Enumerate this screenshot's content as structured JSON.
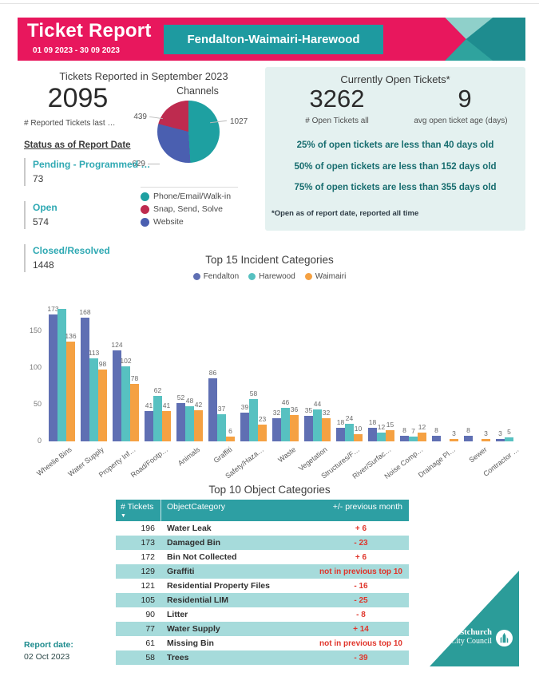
{
  "header": {
    "title": "Ticket Report",
    "date_range": "01 09 2023 - 30 09 2023",
    "area": "Fendalton-Waimairi-Harewood",
    "colors": {
      "band": "#E8175D",
      "area_box": "#1E9AA0",
      "chevron_light": "#8FD0CA",
      "chevron_mid": "#2FA39E",
      "chevron_dark": "#1E8C8F"
    }
  },
  "reported": {
    "title": "Tickets Reported in September 2023",
    "count": "2095",
    "count_caption": "# Reported Tickets last …",
    "status_heading": "Status as of Report Date",
    "statuses": [
      {
        "label": "Pending - Programmed …",
        "value": "73"
      },
      {
        "label": "Open",
        "value": "574"
      },
      {
        "label": "Closed/Resolved",
        "value": "1448"
      }
    ]
  },
  "channels": {
    "title": "Channels",
    "slices": [
      {
        "label": "Phone/Email/Walk-in",
        "value": 1027,
        "color": "#1EA0A1"
      },
      {
        "label": "Snap, Send, Solve",
        "value": 439,
        "color": "#BE2B4F"
      },
      {
        "label": "Website",
        "value": 629,
        "color": "#4A5FB0"
      }
    ]
  },
  "open_tickets": {
    "title": "Currently Open Tickets*",
    "count": "3262",
    "count_caption": "# Open Tickets all",
    "avg_age": "9",
    "avg_age_caption": "avg open ticket age (days)",
    "percentiles": [
      "25% of open tickets are less than 40 days old",
      "50% of open tickets are less than 152 days old",
      "75% of open tickets are less than 355 days old"
    ],
    "footnote": "*Open as of report date, reported all time",
    "panel_bg": "#E4F1F0"
  },
  "chart_data": [
    {
      "type": "pie",
      "title": "Channels",
      "labels": [
        "Phone/Email/Walk-in",
        "Snap, Send, Solve",
        "Website"
      ],
      "values": [
        1027,
        439,
        629
      ],
      "colors": [
        "#1EA0A1",
        "#BE2B4F",
        "#4A5FB0"
      ],
      "draw_order": [
        0,
        2,
        1
      ],
      "legend_position": "bottom",
      "callouts": [
        "1027",
        "439",
        "629"
      ]
    },
    {
      "type": "bar",
      "title": "Top 15 Incident Categories",
      "categories": [
        "Wheelie Bins",
        "Water Supply",
        "Property Inf…",
        "Road/Footp…",
        "Animals",
        "Graffiti",
        "Safety/Haza…",
        "Waste",
        "Vegetation",
        "Structures/F…",
        "River/Surfac…",
        "Noise Comp…",
        "Drainage Pl…",
        "Sewer",
        "Contractor …"
      ],
      "series": [
        {
          "name": "Fendalton",
          "color": "#5F6FB3",
          "values": [
            173,
            168,
            124,
            41,
            52,
            86,
            39,
            32,
            35,
            18,
            18,
            8,
            8,
            8,
            3
          ]
        },
        {
          "name": "Harewood",
          "color": "#57C1C1",
          "values": [
            180,
            113,
            102,
            62,
            48,
            37,
            58,
            46,
            44,
            24,
            12,
            7,
            null,
            null,
            5
          ]
        },
        {
          "name": "Waimairi",
          "color": "#F5A142",
          "values": [
            136,
            98,
            78,
            41,
            42,
            6,
            23,
            36,
            32,
            10,
            15,
            12,
            3,
            3,
            null
          ]
        }
      ],
      "unlabeled_bars": [
        {
          "series_index": 1,
          "category_index": 0,
          "note": "value estimated from bar height, label not shown"
        }
      ],
      "yticks": [
        0,
        50,
        100,
        150
      ],
      "ylim": [
        0,
        200
      ],
      "grid": false,
      "legend_position": "top-center",
      "xlabel": "",
      "ylabel": ""
    }
  ],
  "object_table": {
    "title": "Top 10 Object Categories",
    "headers": {
      "tickets": "# Tickets",
      "category": "ObjectCategory",
      "change": "+/- previous month"
    },
    "sort_icon": "▼",
    "rows": [
      {
        "tickets": "196",
        "category": "Water Leak",
        "change": "+ 6"
      },
      {
        "tickets": "173",
        "category": "Damaged Bin",
        "change": "- 23"
      },
      {
        "tickets": "172",
        "category": "Bin Not Collected",
        "change": "+ 6"
      },
      {
        "tickets": "129",
        "category": "Graffiti",
        "change": "not in previous top 10"
      },
      {
        "tickets": "121",
        "category": "Residential Property Files",
        "change": "- 16"
      },
      {
        "tickets": "105",
        "category": "Residential LIM",
        "change": "- 25"
      },
      {
        "tickets": "90",
        "category": "Litter",
        "change": "- 8"
      },
      {
        "tickets": "77",
        "category": "Water Supply",
        "change": "+ 14"
      },
      {
        "tickets": "61",
        "category": "Missing Bin",
        "change": "not in previous top 10"
      },
      {
        "tickets": "58",
        "category": "Trees",
        "change": "- 39"
      }
    ],
    "header_bg": "#2D9FA3",
    "alt_row_bg": "#A6DBDB",
    "change_color": "#E0352B"
  },
  "footer": {
    "report_date_label": "Report date:",
    "report_date": "02 Oct 2023",
    "logo_line1": "Christchurch",
    "logo_line2": "City Council"
  }
}
